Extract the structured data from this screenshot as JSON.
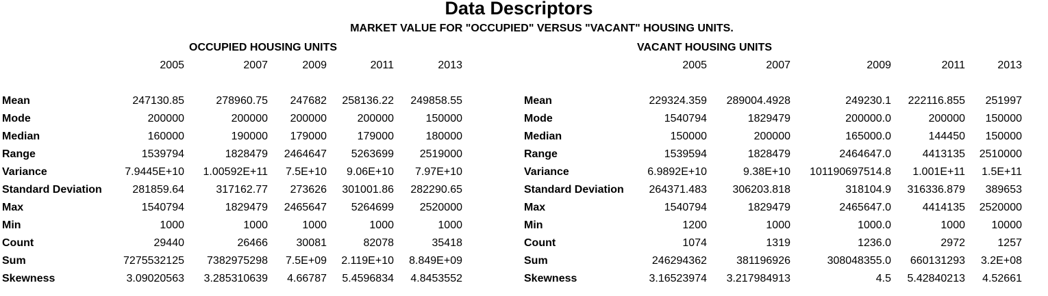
{
  "title": "Data Descriptors",
  "subtitle": "MARKET VALUE FOR \"OCCUPIED\" VERSUS \"VACANT\" HOUSING UNITS.",
  "occupied": {
    "heading": "OCCUPIED HOUSING UNITS",
    "years": [
      "2005",
      "2007",
      "2009",
      "2011",
      "2013"
    ],
    "rows": [
      {
        "label": "Mean",
        "values": [
          "247130.85",
          "278960.75",
          "247682",
          "258136.22",
          "249858.55"
        ]
      },
      {
        "label": "Mode",
        "values": [
          "200000",
          "200000",
          "200000",
          "200000",
          "150000"
        ]
      },
      {
        "label": "Median",
        "values": [
          "160000",
          "190000",
          "179000",
          "179000",
          "180000"
        ]
      },
      {
        "label": "Range",
        "values": [
          "1539794",
          "1828479",
          "2464647",
          "5263699",
          "2519000"
        ]
      },
      {
        "label": "Variance",
        "values": [
          "7.9445E+10",
          "1.00592E+11",
          "7.5E+10",
          "9.06E+10",
          "7.97E+10"
        ]
      },
      {
        "label": "Standard Deviation",
        "values": [
          "281859.64",
          "317162.77",
          "273626",
          "301001.86",
          "282290.65"
        ]
      },
      {
        "label": "Max",
        "values": [
          "1540794",
          "1829479",
          "2465647",
          "5264699",
          "2520000"
        ]
      },
      {
        "label": "Min",
        "values": [
          "1000",
          "1000",
          "1000",
          "1000",
          "1000"
        ]
      },
      {
        "label": "Count",
        "values": [
          "29440",
          "26466",
          "30081",
          "82078",
          "35418"
        ]
      },
      {
        "label": "Sum",
        "values": [
          "7275532125",
          "7382975298",
          "7.5E+09",
          "2.119E+10",
          "8.849E+09"
        ]
      },
      {
        "label": "Skewness",
        "values": [
          "3.09020563",
          "3.285310639",
          "4.66787",
          "5.4596834",
          "4.8453552"
        ]
      }
    ]
  },
  "vacant": {
    "heading": "VACANT HOUSING UNITS",
    "years": [
      "2005",
      "2007",
      "2009",
      "2011",
      "2013"
    ],
    "rows": [
      {
        "label": "Mean",
        "values": [
          "229324.359",
          "289004.4928",
          "249230.1",
          "222116.855",
          "251997"
        ]
      },
      {
        "label": "Mode",
        "values": [
          "1540794",
          "1829479",
          "200000.0",
          "200000",
          "150000"
        ]
      },
      {
        "label": "Median",
        "values": [
          "150000",
          "200000",
          "165000.0",
          "144450",
          "150000"
        ]
      },
      {
        "label": "Range",
        "values": [
          "1539594",
          "1828479",
          "2464647.0",
          "4413135",
          "2510000"
        ]
      },
      {
        "label": "Variance",
        "values": [
          "6.9892E+10",
          "9.38E+10",
          "101190697514.8",
          "1.001E+11",
          "1.5E+11"
        ]
      },
      {
        "label": "Standard Deviation",
        "values": [
          "264371.483",
          "306203.818",
          "318104.9",
          "316336.879",
          "389653"
        ]
      },
      {
        "label": "Max",
        "values": [
          "1540794",
          "1829479",
          "2465647.0",
          "4414135",
          "2520000"
        ]
      },
      {
        "label": "Min",
        "values": [
          "1200",
          "1000",
          "1000.0",
          "1000",
          "10000"
        ]
      },
      {
        "label": "Count",
        "values": [
          "1074",
          "1319",
          "1236.0",
          "2972",
          "1257"
        ]
      },
      {
        "label": "Sum",
        "values": [
          "246294362",
          "381196926",
          "308048355.0",
          "660131293",
          "3.2E+08"
        ]
      },
      {
        "label": "Skewness",
        "values": [
          "3.16523974",
          "3.217984913",
          "4.5",
          "5.42840213",
          "4.52661"
        ]
      }
    ]
  }
}
